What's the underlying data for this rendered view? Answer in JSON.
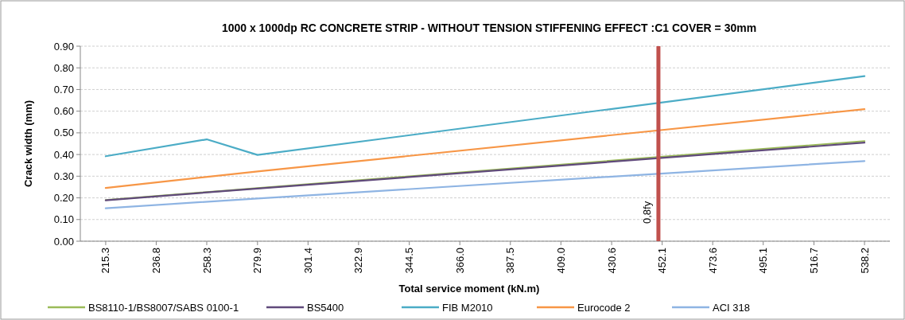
{
  "chart_data": {
    "type": "line",
    "title": "1000 x 1000dp RC CONCRETE STRIP - WITHOUT TENSION STIFFENING EFFECT :C1 COVER = 30mm",
    "xlabel": "Total service moment (kN.m)",
    "ylabel": "Crack width (mm)",
    "xlim": [
      204.5,
      549.0
    ],
    "xticks": [
      {
        "value": 215.3,
        "label": "215.3"
      },
      {
        "value": 236.8,
        "label": "236.8"
      },
      {
        "value": 258.3,
        "label": "258.3"
      },
      {
        "value": 279.9,
        "label": "279.9"
      },
      {
        "value": 301.4,
        "label": "301.4"
      },
      {
        "value": 322.9,
        "label": "322.9"
      },
      {
        "value": 344.5,
        "label": "344.5"
      },
      {
        "value": 366.0,
        "label": "366.0"
      },
      {
        "value": 387.5,
        "label": "387.5"
      },
      {
        "value": 409.0,
        "label": "409.0"
      },
      {
        "value": 430.6,
        "label": "430.6"
      },
      {
        "value": 452.1,
        "label": "452.1"
      },
      {
        "value": 473.6,
        "label": "473.6"
      },
      {
        "value": 495.1,
        "label": "495.1"
      },
      {
        "value": 516.7,
        "label": "516.7"
      },
      {
        "value": 538.2,
        "label": "538.2"
      }
    ],
    "ylim": [
      0,
      0.9
    ],
    "yticks": [
      {
        "value": 0,
        "label": "0.00"
      },
      {
        "value": 0.1,
        "label": "0.10"
      },
      {
        "value": 0.2,
        "label": "0.20"
      },
      {
        "value": 0.3,
        "label": "0.30"
      },
      {
        "value": 0.4,
        "label": "0.40"
      },
      {
        "value": 0.5,
        "label": "0.50"
      },
      {
        "value": 0.6,
        "label": "0.60"
      },
      {
        "value": 0.7,
        "label": "0.70"
      },
      {
        "value": 0.8,
        "label": "0.80"
      },
      {
        "value": 0.9,
        "label": "0.90"
      }
    ],
    "grid": "y",
    "legend": "bottom",
    "marker": "none",
    "line_style": "solid",
    "series": [
      {
        "name": "BS8110-1/BS8007/SABS 0100-1",
        "color": "#9bbb59",
        "x": [
          215.3,
          279.9,
          538.2
        ],
        "values": [
          0.19,
          0.245,
          0.462
        ]
      },
      {
        "name": "BS5400",
        "color": "#604a7b",
        "x": [
          215.3,
          279.9,
          538.2
        ],
        "values": [
          0.189,
          0.243,
          0.455
        ]
      },
      {
        "name": "FIB M2010",
        "color": "#4bacc6",
        "x": [
          215.3,
          258.3,
          279.9,
          538.2
        ],
        "values": [
          0.392,
          0.47,
          0.398,
          0.762
        ]
      },
      {
        "name": "Eurocode 2",
        "color": "#f79646",
        "x": [
          215.3,
          279.9,
          538.2
        ],
        "values": [
          0.246,
          0.322,
          0.609
        ]
      },
      {
        "name": "ACI 318",
        "color": "#8eb4e3",
        "x": [
          215.3,
          279.9,
          538.2
        ],
        "values": [
          0.152,
          0.197,
          0.37
        ]
      }
    ],
    "ref_lines": [
      {
        "axis": "x",
        "value": 450.5,
        "label": "0,8fy",
        "color": "#c0504d"
      }
    ]
  }
}
